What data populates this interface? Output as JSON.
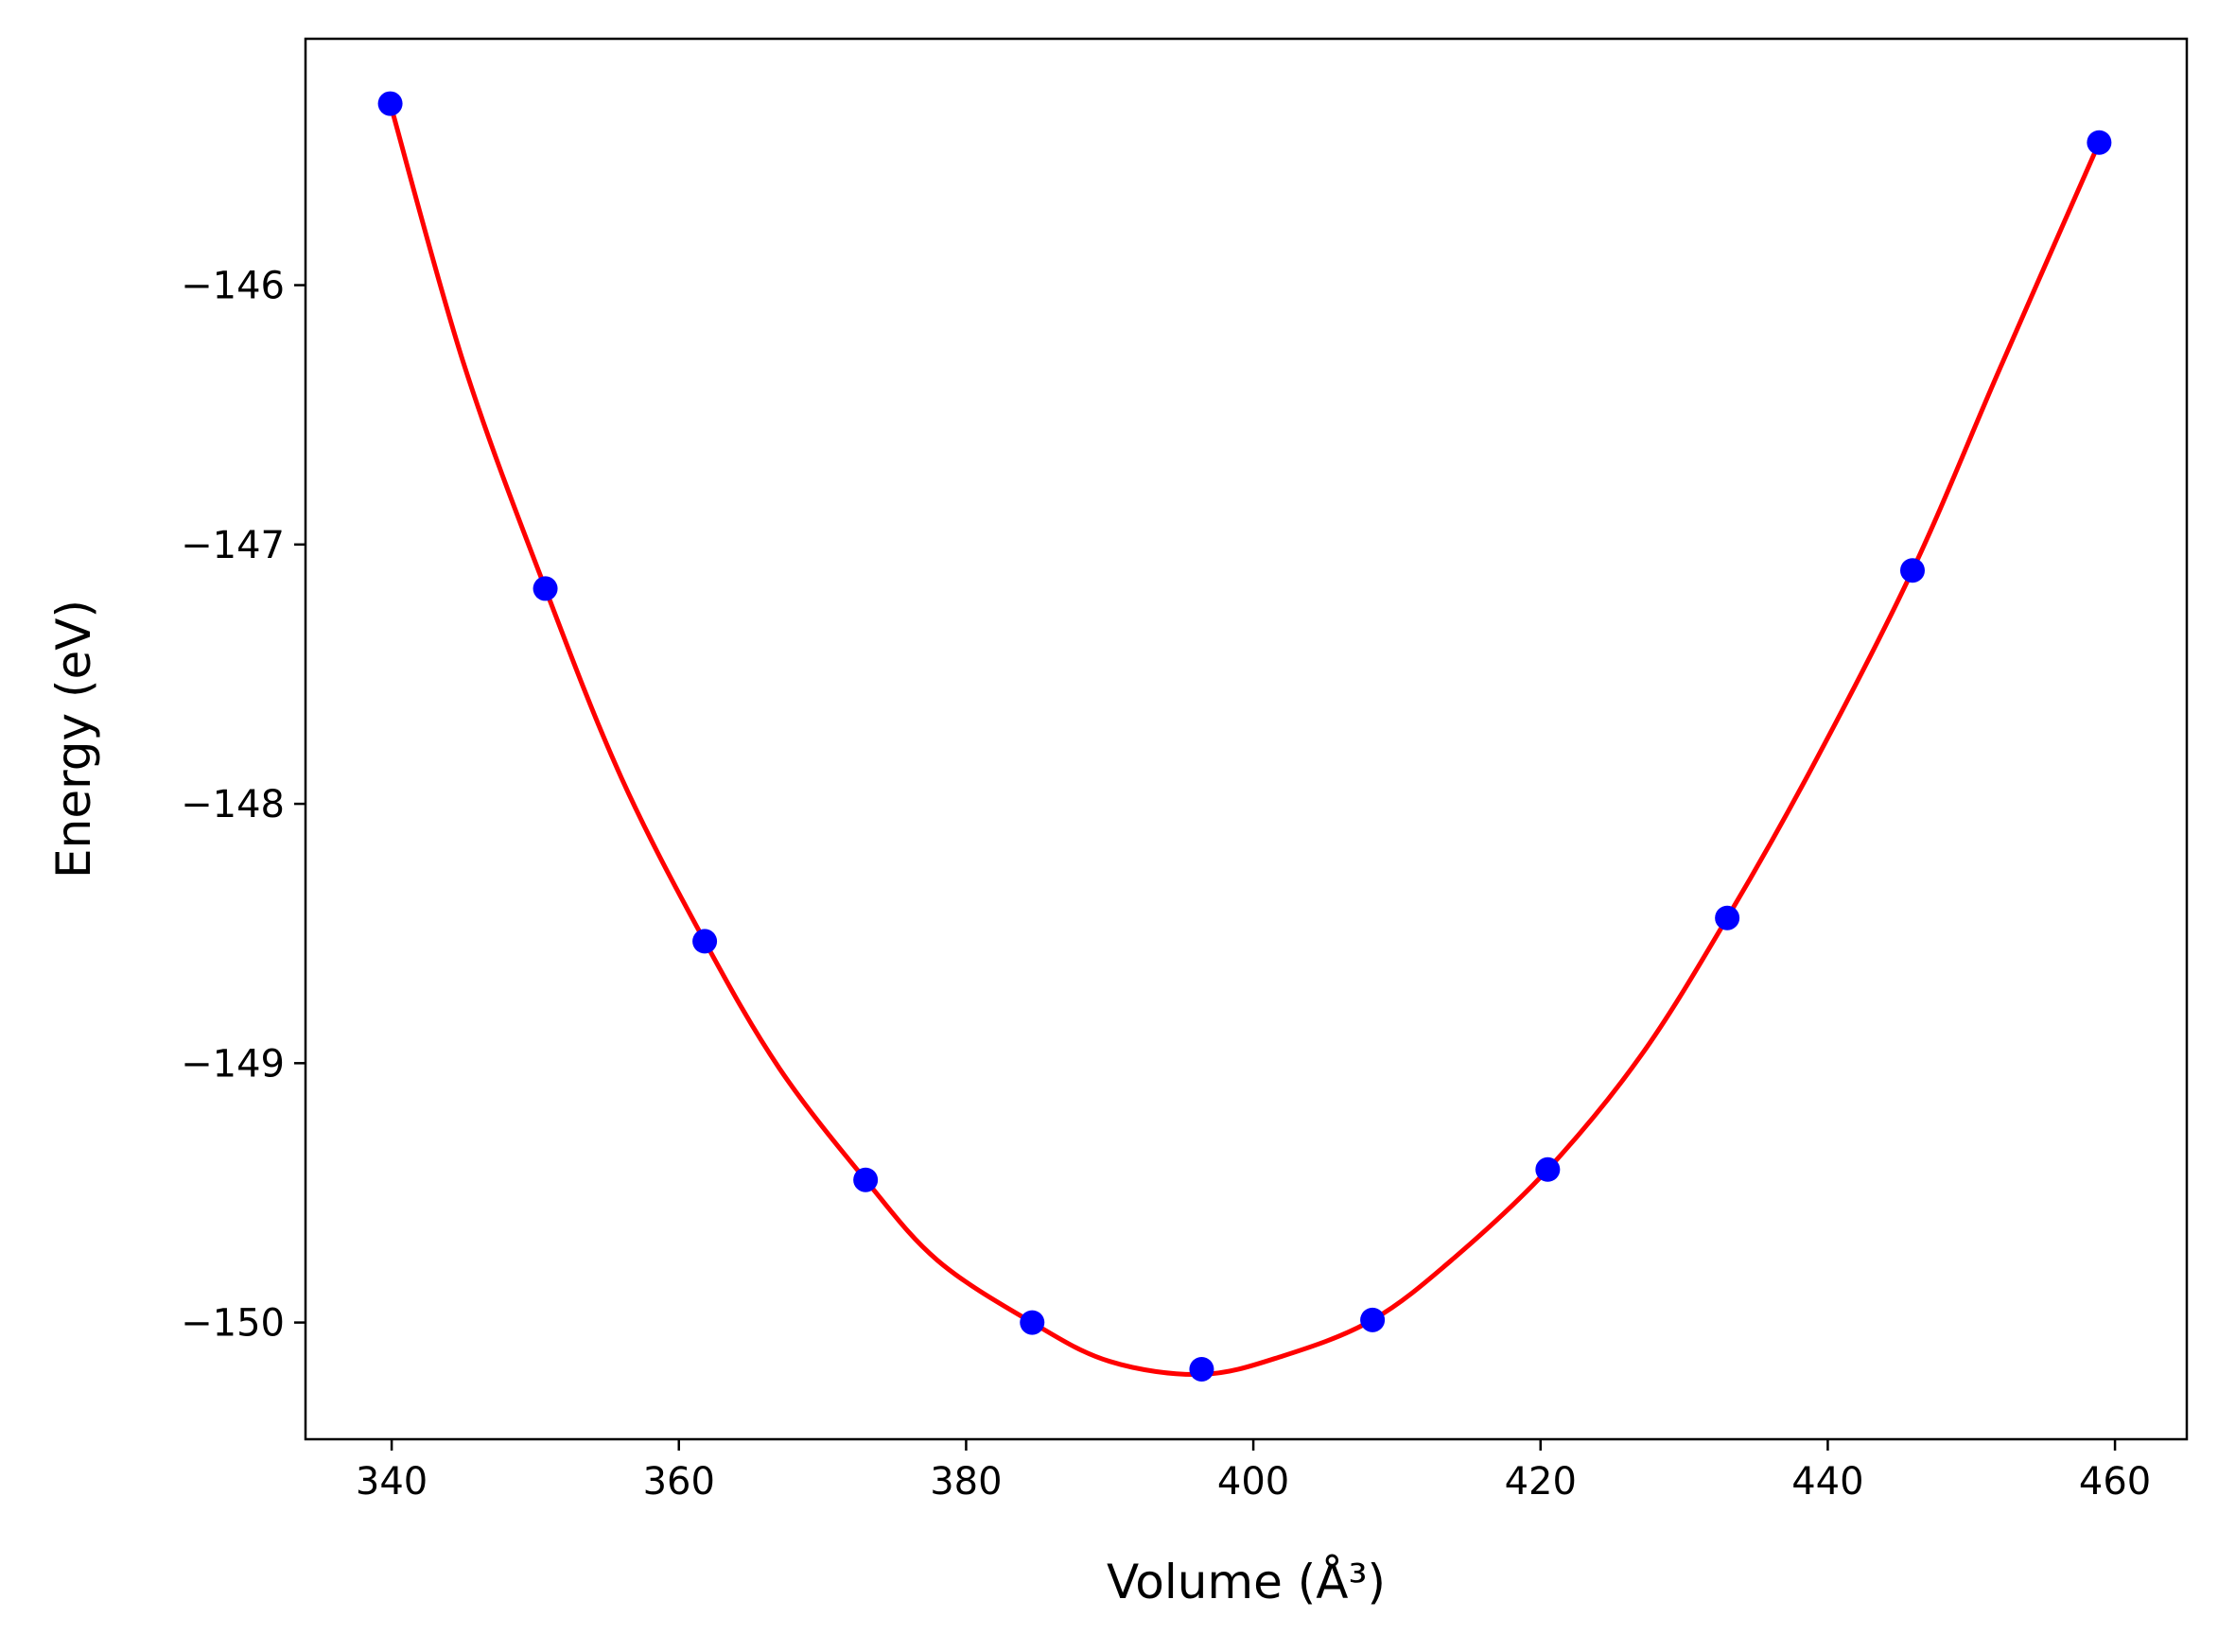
{
  "chart_data": {
    "type": "scatter",
    "xlabel": "Volume (Å³)",
    "ylabel": "Energy (eV)",
    "xlim": [
      334,
      465
    ],
    "ylim": [
      -150.45,
      -145.05
    ],
    "grid": false,
    "xticks": [
      340,
      360,
      380,
      400,
      420,
      440,
      460
    ],
    "yticks": [
      -150,
      -149,
      -148,
      -147,
      -146
    ],
    "xtick_labels": [
      "340",
      "360",
      "380",
      "400",
      "420",
      "440",
      "460"
    ],
    "ytick_labels": [
      "−150",
      "−149",
      "−148",
      "−147",
      "−146"
    ],
    "points": {
      "x": [
        339.9,
        350.7,
        361.8,
        373.0,
        384.6,
        396.4,
        408.3,
        420.5,
        433.0,
        445.9,
        458.9
      ],
      "y": [
        -145.3,
        -147.17,
        -148.53,
        -149.45,
        -150.0,
        -150.18,
        -149.99,
        -149.41,
        -148.44,
        -147.1,
        -145.45
      ],
      "color": "#0000ff"
    },
    "fit": {
      "color": "#ff0000",
      "x": [
        339.9,
        345,
        350.7,
        356,
        361.8,
        367,
        373.0,
        378,
        384.6,
        390,
        396.4,
        402,
        408.3,
        414,
        420.5,
        427,
        433.0,
        439,
        445.9,
        452,
        458.9
      ],
      "y": [
        -145.3,
        -146.3,
        -147.17,
        -147.9,
        -148.53,
        -149.02,
        -149.45,
        -149.76,
        -150.0,
        -150.15,
        -150.2,
        -150.13,
        -149.99,
        -149.75,
        -149.41,
        -148.97,
        -148.44,
        -147.85,
        -147.1,
        -146.32,
        -145.45
      ]
    }
  }
}
